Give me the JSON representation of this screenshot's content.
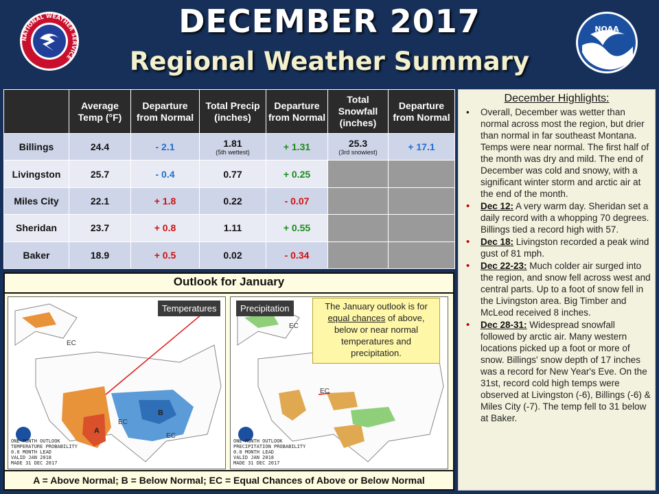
{
  "header": {
    "title": "DECEMBER 2017",
    "subtitle": "Regional Weather Summary",
    "nws_logo_text": "NATIONAL WEATHER SERVICE",
    "noaa_logo_text": "NOAA"
  },
  "table": {
    "columns": [
      "Average Temp (°F)",
      "Departure from Normal",
      "Total Precip (inches)",
      "Departure from Normal",
      "Total Snowfall (inches)",
      "Departure from Normal"
    ],
    "rows": [
      {
        "city": "Billings",
        "avg_temp": "24.4",
        "temp_dep": "- 2.1",
        "precip": "1.81",
        "precip_note": "(5th wettest)",
        "precip_dep": "+ 1.31",
        "snow": "25.3",
        "snow_note": "(3rd snowiest)",
        "snow_dep": "+ 17.1"
      },
      {
        "city": "Livingston",
        "avg_temp": "25.7",
        "temp_dep": "- 0.4",
        "precip": "0.77",
        "precip_dep": "+ 0.25"
      },
      {
        "city": "Miles City",
        "avg_temp": "22.1",
        "temp_dep": "+ 1.8",
        "precip": "0.22",
        "precip_dep": "- 0.07"
      },
      {
        "city": "Sheridan",
        "avg_temp": "23.7",
        "temp_dep": "+ 0.8",
        "precip": "1.11",
        "precip_dep": "+ 0.55"
      },
      {
        "city": "Baker",
        "avg_temp": "18.9",
        "temp_dep": "+ 0.5",
        "precip": "0.02",
        "precip_dep": "- 0.34"
      }
    ]
  },
  "outlook": {
    "title": "Outlook for January",
    "temp_tab": "Temperatures",
    "precip_tab": "Precipitation",
    "callout_part1": "The January outlook is for",
    "callout_underlined": "equal chances",
    "callout_part2": "of above, below or near normal temperatures and precipitation.",
    "legend": "A = Above Normal;  B = Below Normal;  EC = Equal Chances of Above or Below Normal",
    "temp_caption": "ONE-MONTH OUTLOOK\nTEMPERATURE PROBABILITY\n0.0 MONTH LEAD\nVALID JAN 2018\nMADE 31 DEC 2017",
    "precip_caption": "ONE-MONTH OUTLOOK\nPRECIPITATION PROBABILITY\n0.0 MONTH LEAD\nVALID JAN 2018\nMADE 31 DEC 2017",
    "map_labels": {
      "ec": "EC",
      "a": "A",
      "b": "B"
    },
    "colors": {
      "above": "#e8923a",
      "above_dark": "#d9502a",
      "below": "#5b9bd8",
      "below_dark": "#2f6fb8",
      "wet": "#8fcf7a",
      "dry": "#e0a850"
    }
  },
  "highlights": {
    "title": "December Highlights:",
    "items": [
      {
        "date": "",
        "text": "Overall, December was wetter than normal across most the region, but drier than normal in far southeast Montana. Temps were near normal. The first half of the month was dry and mild. The end of December was cold and snowy, with a significant winter storm and arctic air at the end of the month."
      },
      {
        "date": "Dec 12:",
        "text": " A very warm day. Sheridan set a daily record with a whopping 70 degrees. Billings tied a record high with 57."
      },
      {
        "date": "Dec 18:",
        "text": " Livingston recorded a peak wind gust of 81 mph."
      },
      {
        "date": "Dec 22-23:",
        "text": " Much colder air surged into the region, and snow fell across west and central parts. Up to a foot of snow fell in the Livingston area. Big Timber and McLeod received 8 inches."
      },
      {
        "date": "Dec 28-31:",
        "text": " Widespread snowfall followed by arctic air. Many western locations picked up a foot or more of snow. Billings' snow depth of 17 inches was a record for New Year's Eve. On the 31st, record cold high temps were observed at Livingston (-6), Billings (-6) & Miles City (-7). The temp fell to 31 below at Baker."
      }
    ]
  }
}
